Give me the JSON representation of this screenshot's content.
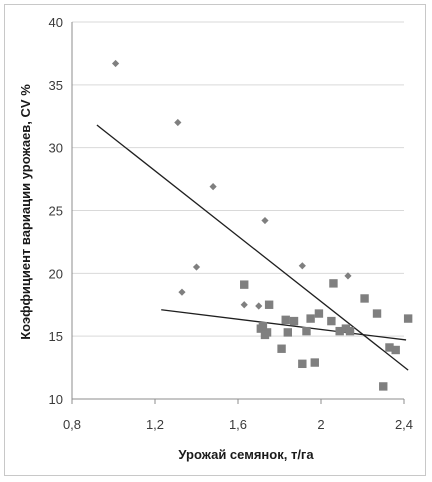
{
  "chart_data": {
    "type": "scatter",
    "xlabel": "Урожай семянок, т/га",
    "ylabel": "Коэффициент вариации урожаев, CV %",
    "xlim": [
      0.8,
      2.4
    ],
    "ylim": [
      10,
      40
    ],
    "x_ticks": [
      "0,8",
      "1,2",
      "1,6",
      "2",
      "2,4"
    ],
    "y_ticks": [
      "10",
      "15",
      "20",
      "25",
      "30",
      "35",
      "40"
    ],
    "x_tick_values": [
      0.8,
      1.2,
      1.6,
      2.0,
      2.4
    ],
    "y_tick_values": [
      10,
      15,
      20,
      25,
      30,
      35,
      40
    ],
    "grid": "horizontal",
    "colors": {
      "markers": "#7f7f7f",
      "trendline": "#1f1f1f",
      "grid": "#d9d9d9"
    },
    "series": [
      {
        "marker": "diamond",
        "points": [
          [
            1.01,
            36.7
          ],
          [
            1.31,
            32.0
          ],
          [
            1.48,
            26.9
          ],
          [
            1.73,
            24.2
          ],
          [
            1.4,
            20.5
          ],
          [
            1.33,
            18.5
          ],
          [
            1.63,
            17.5
          ],
          [
            1.91,
            20.6
          ],
          [
            2.13,
            19.8
          ],
          [
            1.7,
            17.4
          ]
        ],
        "trendline": [
          [
            0.92,
            31.8
          ],
          [
            2.42,
            12.3
          ]
        ]
      },
      {
        "marker": "square",
        "points": [
          [
            1.63,
            19.1
          ],
          [
            1.75,
            17.5
          ],
          [
            1.72,
            15.8
          ],
          [
            1.71,
            15.6
          ],
          [
            1.74,
            15.3
          ],
          [
            1.73,
            15.1
          ],
          [
            1.81,
            14.0
          ],
          [
            1.83,
            16.3
          ],
          [
            1.84,
            15.3
          ],
          [
            1.87,
            16.2
          ],
          [
            1.91,
            12.8
          ],
          [
            1.93,
            15.4
          ],
          [
            1.95,
            16.4
          ],
          [
            1.97,
            12.9
          ],
          [
            1.99,
            16.8
          ],
          [
            2.05,
            16.2
          ],
          [
            2.06,
            19.2
          ],
          [
            2.09,
            15.4
          ],
          [
            2.12,
            15.6
          ],
          [
            2.14,
            15.4
          ],
          [
            2.21,
            18.0
          ],
          [
            2.27,
            16.8
          ],
          [
            2.3,
            11.0
          ],
          [
            2.33,
            14.1
          ],
          [
            2.36,
            13.9
          ],
          [
            2.42,
            16.4
          ]
        ],
        "trendline": [
          [
            1.23,
            17.1
          ],
          [
            2.41,
            14.7
          ]
        ]
      }
    ]
  }
}
